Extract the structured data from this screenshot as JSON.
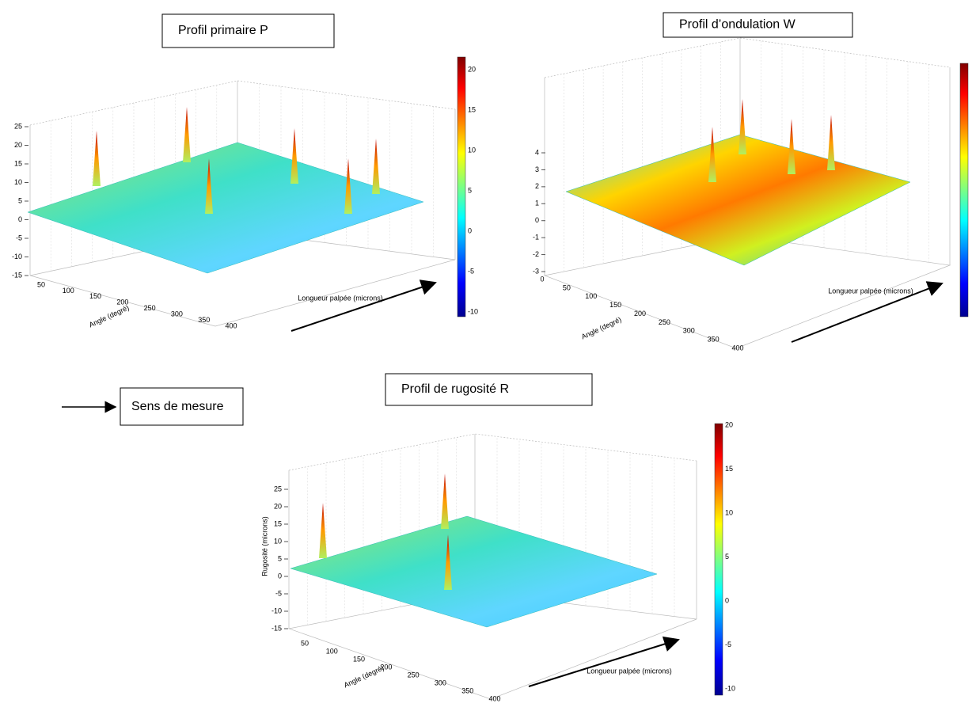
{
  "legend": {
    "label": "Sens de mesure"
  },
  "panels": [
    {
      "title": "Profil primaire P",
      "z_ticks": [
        "25",
        "20",
        "15",
        "10",
        "5",
        "0",
        "-5",
        "-10",
        "-15"
      ],
      "angle_ticks": [
        "50",
        "100",
        "150",
        "200",
        "250",
        "300",
        "350",
        "400"
      ],
      "angle_label": "Angle (degré)",
      "length_label": "Longueur palpée (microns)",
      "colorbar_ticks": [
        "20",
        "15",
        "10",
        "5",
        "0",
        "-5",
        "-10"
      ]
    },
    {
      "title": "Profil d’ondulation W",
      "z_ticks": [
        "4",
        "3",
        "2",
        "1",
        "0",
        "-1",
        "-2",
        "-3"
      ],
      "angle_ticks": [
        "0",
        "50",
        "100",
        "150",
        "200",
        "250",
        "300",
        "350",
        "400"
      ],
      "angle_label": "Angle (degré)",
      "length_label": "Longueur palpée (microns)",
      "colorbar_ticks": []
    },
    {
      "title": "Profil de rugosité R",
      "z_label": "Rugosité (microns)",
      "z_ticks": [
        "25",
        "20",
        "15",
        "10",
        "5",
        "0",
        "-5",
        "-10",
        "-15"
      ],
      "angle_ticks": [
        "50",
        "100",
        "150",
        "200",
        "250",
        "300",
        "350",
        "400"
      ],
      "angle_label": "Angle (degré)",
      "length_label": "Longueur palpée (microns)",
      "colorbar_ticks": [
        "20",
        "15",
        "10",
        "5",
        "0",
        "-5",
        "-10"
      ]
    }
  ]
}
